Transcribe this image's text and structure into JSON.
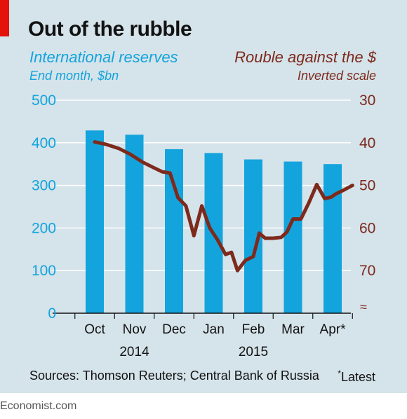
{
  "header": {
    "title": "Out of the rubble",
    "left_subtitle": "International reserves",
    "left_unit": "End month, $bn",
    "right_subtitle": "Rouble against the $",
    "right_unit": "Inverted scale"
  },
  "footer": {
    "source": "Sources: Thomson Reuters; Central Bank of Russia",
    "note_mark": "*",
    "note": "Latest",
    "brand": "Economist.com"
  },
  "colors": {
    "bars": "#13a4dd",
    "line": "#7d2a1c",
    "background": "#d5e3ea",
    "accent": "#e3120b"
  },
  "chart_data": {
    "type": "bar",
    "categories": [
      "Oct",
      "Nov",
      "Dec",
      "Jan",
      "Feb",
      "Mar",
      "Apr*"
    ],
    "year_labels": [
      {
        "label": "2014",
        "under": "Nov"
      },
      {
        "label": "2015",
        "under": "Feb"
      }
    ],
    "series": [
      {
        "type": "bar",
        "axis": "left",
        "values": [
          429,
          419,
          385,
          376,
          361,
          356,
          350
        ]
      },
      {
        "type": "line",
        "axis": "right",
        "x": [
          0,
          0.3,
          0.6,
          0.9,
          1.2,
          1.5,
          1.7,
          1.9,
          2.1,
          2.3,
          2.5,
          2.7,
          2.9,
          3.1,
          3.3,
          3.45,
          3.6,
          3.8,
          4.0,
          4.15,
          4.3,
          4.5,
          4.7,
          4.85,
          5.0,
          5.2,
          5.4,
          5.6,
          5.8,
          5.95,
          6.1,
          6.3,
          6.5
        ],
        "values": [
          39.8,
          40.4,
          41.3,
          42.7,
          44.5,
          45.9,
          46.8,
          47.1,
          52.9,
          54.8,
          61.8,
          54.8,
          60.0,
          62.8,
          66.2,
          65.7,
          70.0,
          67.6,
          66.7,
          61.2,
          62.4,
          62.4,
          62.2,
          60.9,
          57.9,
          57.9,
          54.1,
          49.8,
          53.1,
          52.8,
          51.9,
          51.0,
          50.0
        ]
      }
    ],
    "left_axis": {
      "ylim": [
        0,
        500
      ],
      "ticks": [
        "0",
        "100",
        "200",
        "300",
        "400",
        "500"
      ]
    },
    "right_axis": {
      "ylim": [
        30,
        70
      ],
      "inverted": true,
      "ticks": [
        "30",
        "40",
        "50",
        "60",
        "70"
      ],
      "break_symbol": "≈"
    },
    "grid": true
  }
}
